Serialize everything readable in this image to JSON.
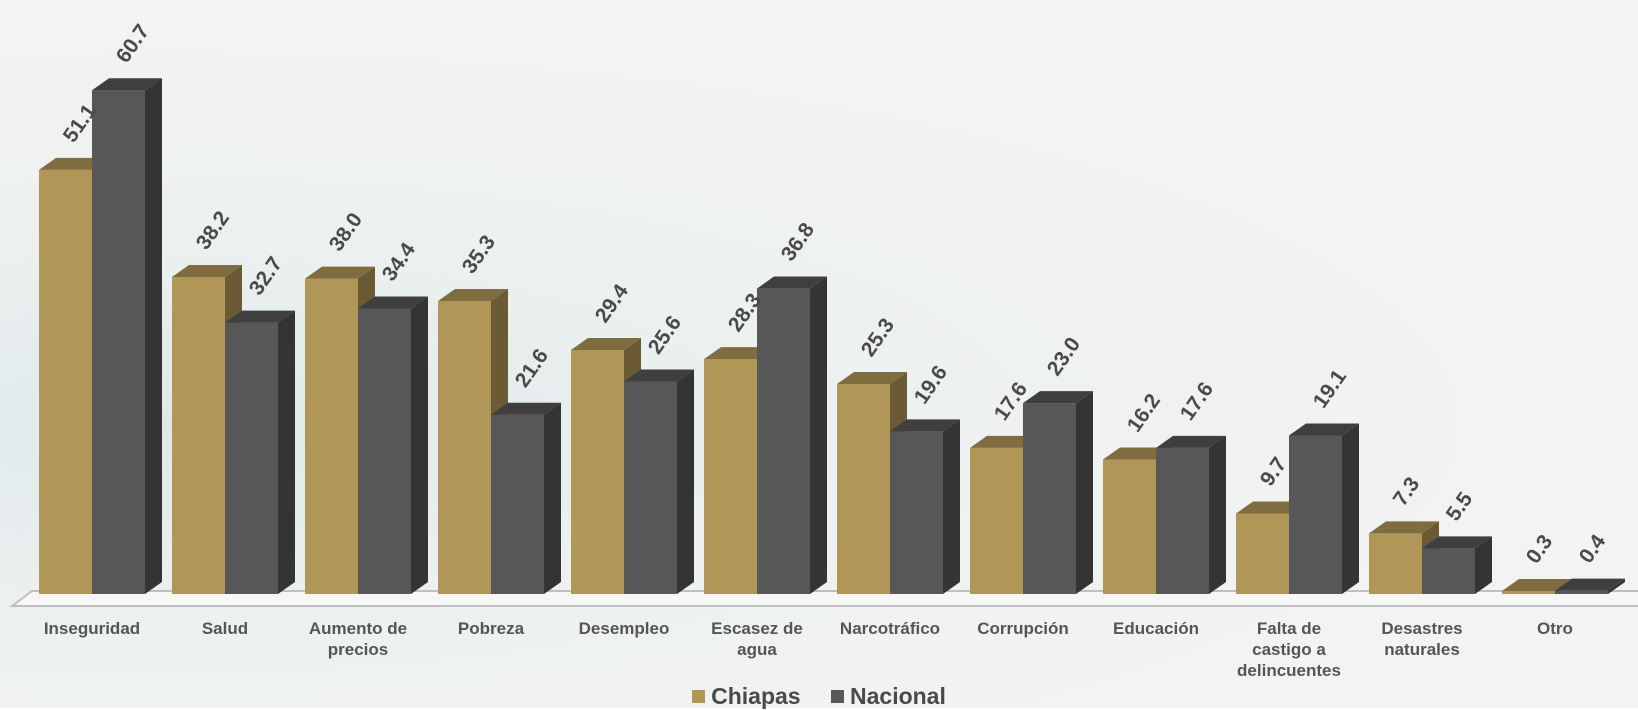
{
  "chart_data": {
    "type": "bar",
    "categories": [
      [
        "Inseguridad"
      ],
      [
        "Salud"
      ],
      [
        "Aumento de",
        "precios"
      ],
      [
        "Pobreza"
      ],
      [
        "Desempleo"
      ],
      [
        "Escasez de",
        "agua"
      ],
      [
        "Narcotráfico"
      ],
      [
        "Corrupción"
      ],
      [
        "Educación"
      ],
      [
        "Falta de",
        "castigo a",
        "delincuentes"
      ],
      [
        "Desastres",
        "naturales"
      ],
      [
        "Otro"
      ]
    ],
    "series": [
      {
        "name": "Chiapas",
        "color": "#b09758",
        "values": [
          51.1,
          38.2,
          38.0,
          35.3,
          29.4,
          28.3,
          25.3,
          17.6,
          16.2,
          9.7,
          7.3,
          0.3
        ],
        "labels": [
          "51.1",
          "38.2",
          "38.0",
          "35.3",
          "29.4",
          "28.3",
          "25.3",
          "17.6",
          "16.2",
          "9.7",
          "7.3",
          "0.3"
        ]
      },
      {
        "name": "Nacional",
        "color": "#575757",
        "values": [
          60.7,
          32.7,
          34.4,
          21.6,
          25.6,
          36.8,
          19.6,
          23.0,
          17.6,
          19.1,
          5.5,
          0.4
        ],
        "labels": [
          "60.7",
          "32.7",
          "34.4",
          "21.6",
          "25.6",
          "36.8",
          "19.6",
          "23.0",
          "17.6",
          "19.1",
          "5.5",
          "0.4"
        ]
      }
    ],
    "ylim": [
      0,
      65
    ],
    "grid": false,
    "legend_position": "bottom",
    "style": "3d-clustered-column"
  },
  "legend": {
    "chiapas": "Chiapas",
    "nacional": "Nacional"
  }
}
